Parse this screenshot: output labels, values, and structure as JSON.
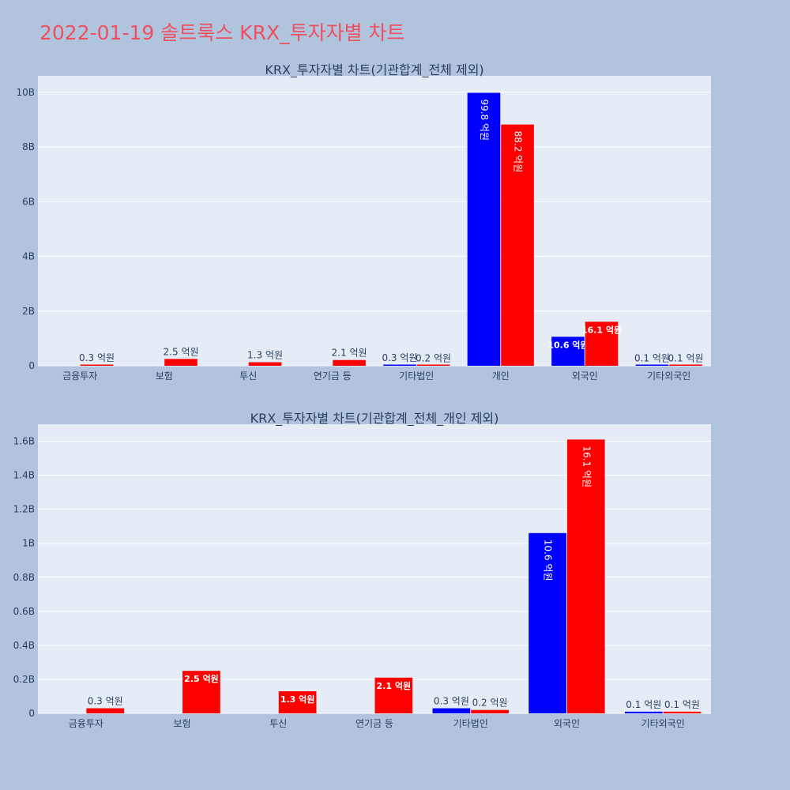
{
  "page": {
    "title": "2022-01-19 솔트룩스 KRX_투자자별 차트"
  },
  "colors": {
    "buy": "#0000ff",
    "sell": "#ff0000",
    "plot_bg": "#e5ecf6",
    "page_bg": "#b0c4de",
    "title": "#ef5060"
  },
  "chart_data": [
    {
      "type": "bar",
      "title": "KRX_투자자별 차트(기관합계_전체 제외)",
      "categories": [
        "금융투자",
        "보험",
        "투신",
        "연기금 등",
        "기타법인",
        "개인",
        "외국인",
        "기타외국인"
      ],
      "ylim": [
        0,
        10600000000
      ],
      "yticks": [
        0,
        2000000000,
        4000000000,
        6000000000,
        8000000000,
        10000000000
      ],
      "ytick_labels": [
        "0",
        "2B",
        "4B",
        "6B",
        "8B",
        "10B"
      ],
      "grid": true,
      "series": [
        {
          "color": "#0000ff",
          "values": [
            0,
            0,
            0,
            0,
            30000000,
            9980000000,
            1060000000,
            10000000
          ],
          "labels": [
            "",
            "",
            "",
            "",
            "0.3 억원",
            "99.8 억원",
            "10.6 억원",
            "0.1 억원"
          ]
        },
        {
          "color": "#ff0000",
          "values": [
            30000000,
            250000000,
            130000000,
            210000000,
            20000000,
            8820000000,
            1610000000,
            10000000
          ],
          "labels": [
            "0.3 억원",
            "2.5 억원",
            "1.3 억원",
            "2.1 억원",
            "0.2 억원",
            "88.2 억원",
            "16.1 억원",
            "0.1 억원"
          ]
        }
      ]
    },
    {
      "type": "bar",
      "title": "KRX_투자자별 차트(기관합계_전체_개인 제외)",
      "categories": [
        "금융투자",
        "보험",
        "투신",
        "연기금 등",
        "기타법인",
        "외국인",
        "기타외국인"
      ],
      "ylim": [
        0,
        1700000000
      ],
      "yticks": [
        0,
        200000000,
        400000000,
        600000000,
        800000000,
        1000000000,
        1200000000,
        1400000000,
        1600000000
      ],
      "ytick_labels": [
        "0",
        "0.2B",
        "0.4B",
        "0.6B",
        "0.8B",
        "1B",
        "1.2B",
        "1.4B",
        "1.6B"
      ],
      "grid": true,
      "series": [
        {
          "color": "#0000ff",
          "values": [
            0,
            0,
            0,
            0,
            30000000,
            1060000000,
            10000000
          ],
          "labels": [
            "",
            "",
            "",
            "",
            "0.3 억원",
            "10.6 억원",
            "0.1 억원"
          ]
        },
        {
          "color": "#ff0000",
          "values": [
            30000000,
            250000000,
            130000000,
            210000000,
            20000000,
            1610000000,
            10000000
          ],
          "labels": [
            "0.3 억원",
            "2.5 억원",
            "1.3 억원",
            "2.1 억원",
            "0.2 억원",
            "16.1 억원",
            "0.1 억원"
          ]
        }
      ]
    }
  ]
}
